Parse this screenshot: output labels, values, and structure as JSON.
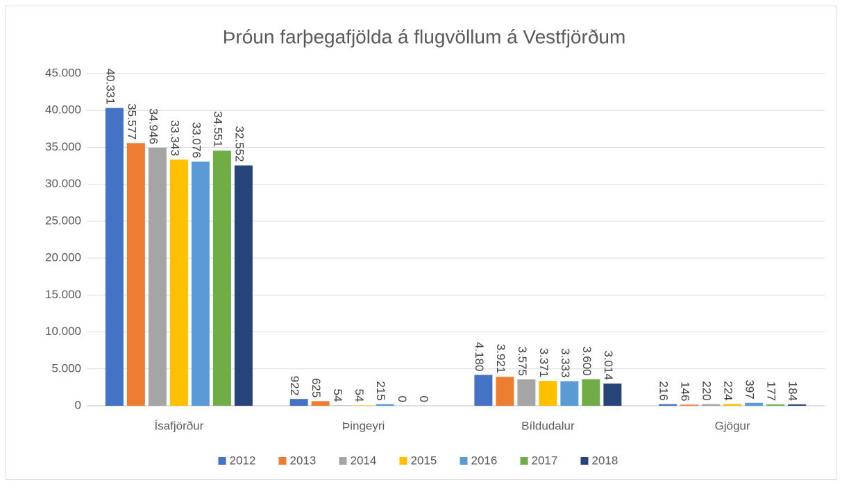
{
  "chart_data": {
    "type": "bar",
    "title": "Þróun farþegafjölda á flugvöllum á Vestfjörðum",
    "categories": [
      "Ísafjörður",
      "Þingeyri",
      "Bíldudalur",
      "Gjögur"
    ],
    "series": [
      {
        "name": "2012",
        "color": "#4472c4",
        "values": [
          40331,
          922,
          4180,
          216
        ],
        "value_labels": [
          "40.331",
          "922",
          "4.180",
          "216"
        ]
      },
      {
        "name": "2013",
        "color": "#ed7d31",
        "values": [
          35577,
          625,
          3921,
          146
        ],
        "value_labels": [
          "35.577",
          "625",
          "3.921",
          "146"
        ]
      },
      {
        "name": "2014",
        "color": "#a5a5a5",
        "values": [
          34946,
          54,
          3575,
          220
        ],
        "value_labels": [
          "34.946",
          "54",
          "3.575",
          "220"
        ]
      },
      {
        "name": "2015",
        "color": "#ffc000",
        "values": [
          33343,
          54,
          3371,
          224
        ],
        "value_labels": [
          "33.343",
          "54",
          "3.371",
          "224"
        ]
      },
      {
        "name": "2016",
        "color": "#5b9bd5",
        "values": [
          33076,
          215,
          3333,
          397
        ],
        "value_labels": [
          "33.076",
          "215",
          "3.333",
          "397"
        ]
      },
      {
        "name": "2017",
        "color": "#70ad47",
        "values": [
          34551,
          0,
          3600,
          177
        ],
        "value_labels": [
          "34.551",
          "0",
          "3.600",
          "177"
        ]
      },
      {
        "name": "2018",
        "color": "#264478",
        "values": [
          32552,
          0,
          3014,
          184
        ],
        "value_labels": [
          "32.552",
          "0",
          "3.014",
          "184"
        ]
      }
    ],
    "ylim": [
      0,
      45000
    ],
    "yticks": [
      0,
      {
        "value": 5000,
        "label": "5.000"
      },
      {
        "value": 10000,
        "label": "10.000"
      },
      {
        "value": 15000,
        "label": "15.000"
      },
      {
        "value": 20000,
        "label": "20.000"
      },
      {
        "value": 25000,
        "label": "25.000"
      },
      {
        "value": 30000,
        "label": "30.000"
      },
      {
        "value": 35000,
        "label": "35.000"
      },
      {
        "value": 40000,
        "label": "40.000"
      },
      {
        "value": 45000,
        "label": "45.000"
      }
    ],
    "grid": true,
    "legend": "bottom"
  }
}
